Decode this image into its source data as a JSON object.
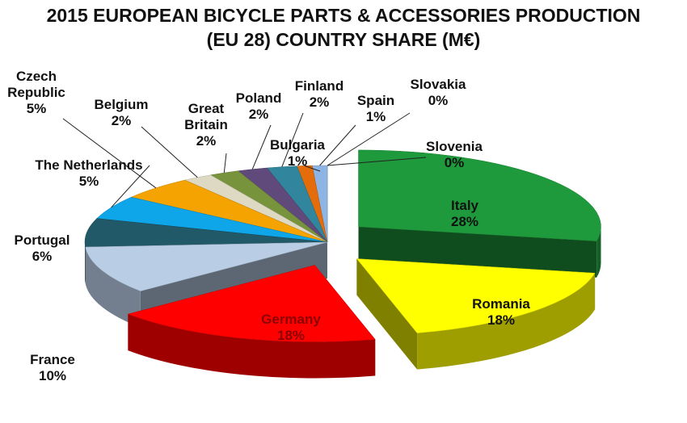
{
  "chart_data": {
    "type": "pie3d",
    "title": "2015 EUROPEAN BICYCLE PARTS & ACCESSORIES PRODUCTION",
    "subtitle": "(EU 28) COUNTRY SHARE (M€)",
    "categories": [
      "Italy",
      "Romania",
      "Germany",
      "France",
      "Portugal",
      "The Netherlands",
      "Czech Republic",
      "Belgium",
      "Great Britain",
      "Poland",
      "Finland",
      "Bulgaria",
      "Spain",
      "Slovakia",
      "Slovenia"
    ],
    "values": [
      28,
      18,
      18,
      10,
      6,
      5,
      5,
      2,
      2,
      2,
      2,
      1,
      1,
      0,
      0
    ],
    "value_labels": [
      "28%",
      "18%",
      "18%",
      "10%",
      "6%",
      "5%",
      "5%",
      "2%",
      "2%",
      "2%",
      "2%",
      "1%",
      "1%",
      "0%",
      "0%"
    ],
    "colors": [
      "#1e9a3c",
      "#ffff00",
      "#ff0000",
      "#b9cde5",
      "#215968",
      "#0ea5e9",
      "#f5a300",
      "#ddd9c3",
      "#77933c",
      "#604a7b",
      "#31859c",
      "#e46c0a",
      "#8eb4e3",
      "#b3a2c7",
      "#c3d69b"
    ]
  }
}
